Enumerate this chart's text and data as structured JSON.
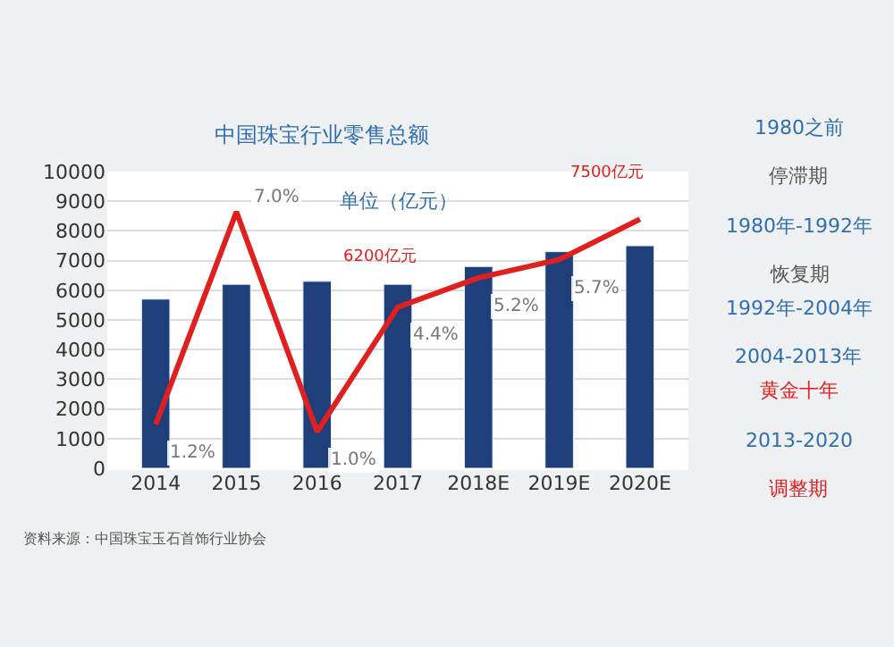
{
  "chart_data": {
    "type": "bar",
    "title": "中国珠宝行业零售总额",
    "subtitle": "单位（亿元）",
    "categories": [
      "2014",
      "2015",
      "2016",
      "2017",
      "2018E",
      "2019E",
      "2020E"
    ],
    "series": [
      {
        "color": "#1f3f7a",
        "values": [
          5700,
          6200,
          6300,
          6200,
          6800,
          7300,
          7500
        ]
      },
      {
        "type": "line",
        "axis": "y2",
        "color": "#e02020",
        "values": [
          1.2,
          7.0,
          1.0,
          4.4,
          5.2,
          5.7,
          6.8
        ],
        "value_labels": [
          "1.2%",
          "7.0%",
          "1.0%",
          "4.4%",
          "5.2%",
          "5.7%",
          null
        ]
      }
    ],
    "ylim": [
      0,
      10000
    ],
    "yticks": [
      0,
      1000,
      2000,
      3000,
      4000,
      5000,
      6000,
      7000,
      8000,
      9000,
      10000
    ],
    "y2lim": [
      0,
      8.1
    ],
    "tick_labels": "xy",
    "grid": "y",
    "annotations": [
      "6200亿元",
      "7500亿元",
      "资料来源：中国珠宝玉石首饰行业协会",
      "1980之前",
      "停滞期",
      "1980年-1992年",
      "恢复期",
      "1992年-2004年",
      "2004-2013年",
      "黄金十年",
      "2013-2020",
      "调整期"
    ]
  }
}
